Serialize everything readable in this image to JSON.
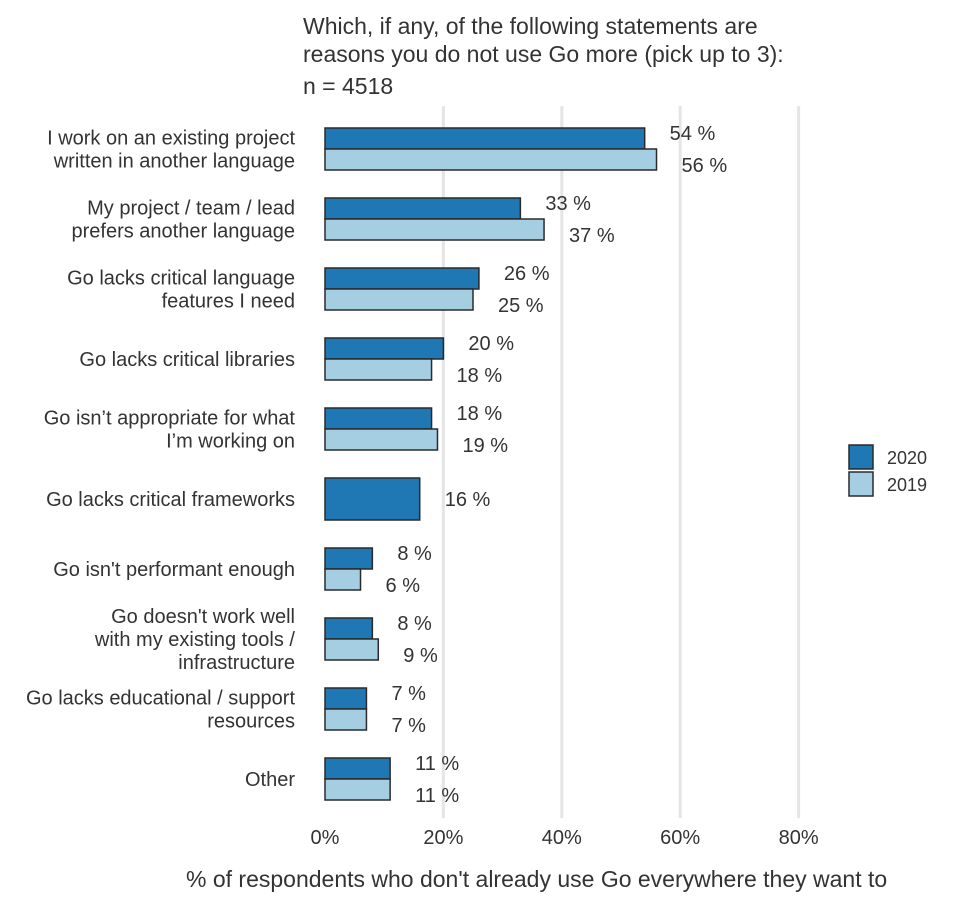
{
  "chart_data": {
    "type": "bar",
    "orientation": "horizontal",
    "title_lines": [
      "Which, if any, of the following statements are",
      "reasons you do not use Go more (pick up to 3):"
    ],
    "subtitle": "n = 4518",
    "xlabel": "% of respondents who don't already use Go everywhere they want to",
    "ylabel": "",
    "xlim": [
      0,
      100
    ],
    "x_ticks": [
      0,
      20,
      40,
      60,
      80
    ],
    "x_tick_labels": [
      "0%",
      "20%",
      "40%",
      "60%",
      "80%"
    ],
    "grid": "vertical",
    "legend_position": "right",
    "categories": [
      [
        "I work on an existing project",
        "written in another language"
      ],
      [
        "My project / team / lead",
        "prefers another language"
      ],
      [
        "Go lacks critical language",
        "features I need"
      ],
      [
        "Go lacks critical libraries"
      ],
      [
        "Go isn’t appropriate for what",
        "I’m working on"
      ],
      [
        "Go lacks critical frameworks"
      ],
      [
        "Go isn't performant enough"
      ],
      [
        "Go doesn't work well",
        "with my existing tools /",
        "infrastructure"
      ],
      [
        "Go lacks educational / support",
        "resources"
      ],
      [
        "Other"
      ]
    ],
    "series": [
      {
        "name": "2020",
        "color": "#1f77b4",
        "values": [
          54,
          33,
          26,
          20,
          18,
          16,
          8,
          8,
          7,
          11
        ],
        "labels": [
          "54 %",
          "33 %",
          "26 %",
          "20 %",
          "18 %",
          "16 %",
          "8 %",
          "8 %",
          "7 %",
          "11 %"
        ]
      },
      {
        "name": "2019",
        "color": "#a6cee3",
        "values": [
          56,
          37,
          25,
          18,
          19,
          null,
          6,
          9,
          7,
          11
        ],
        "labels": [
          "56 %",
          "37 %",
          "25 %",
          "18 %",
          "19 %",
          null,
          "6 %",
          "9 %",
          "7 %",
          "11 %"
        ]
      }
    ]
  }
}
